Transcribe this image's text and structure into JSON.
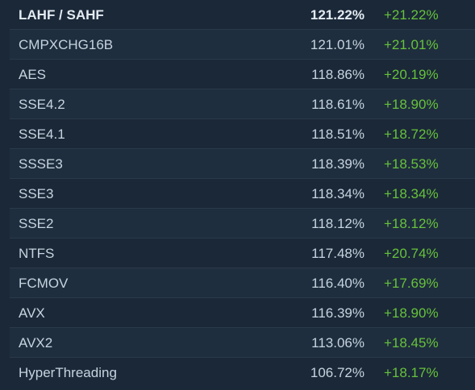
{
  "colors": {
    "background": "#1b2838",
    "text": "#c6d4df",
    "positive": "#66c23b"
  },
  "rows": [
    {
      "name": "LAHF / SAHF",
      "value": "121.22%",
      "change": "+21.22%"
    },
    {
      "name": "CMPXCHG16B",
      "value": "121.01%",
      "change": "+21.01%"
    },
    {
      "name": "AES",
      "value": "118.86%",
      "change": "+20.19%"
    },
    {
      "name": "SSE4.2",
      "value": "118.61%",
      "change": "+18.90%"
    },
    {
      "name": "SSE4.1",
      "value": "118.51%",
      "change": "+18.72%"
    },
    {
      "name": "SSSE3",
      "value": "118.39%",
      "change": "+18.53%"
    },
    {
      "name": "SSE3",
      "value": "118.34%",
      "change": "+18.34%"
    },
    {
      "name": "SSE2",
      "value": "118.12%",
      "change": "+18.12%"
    },
    {
      "name": "NTFS",
      "value": "117.48%",
      "change": "+20.74%"
    },
    {
      "name": "FCMOV",
      "value": "116.40%",
      "change": "+17.69%"
    },
    {
      "name": "AVX",
      "value": "116.39%",
      "change": "+18.90%"
    },
    {
      "name": "AVX2",
      "value": "113.06%",
      "change": "+18.45%"
    },
    {
      "name": "HyperThreading",
      "value": "106.72%",
      "change": "+18.17%"
    }
  ]
}
